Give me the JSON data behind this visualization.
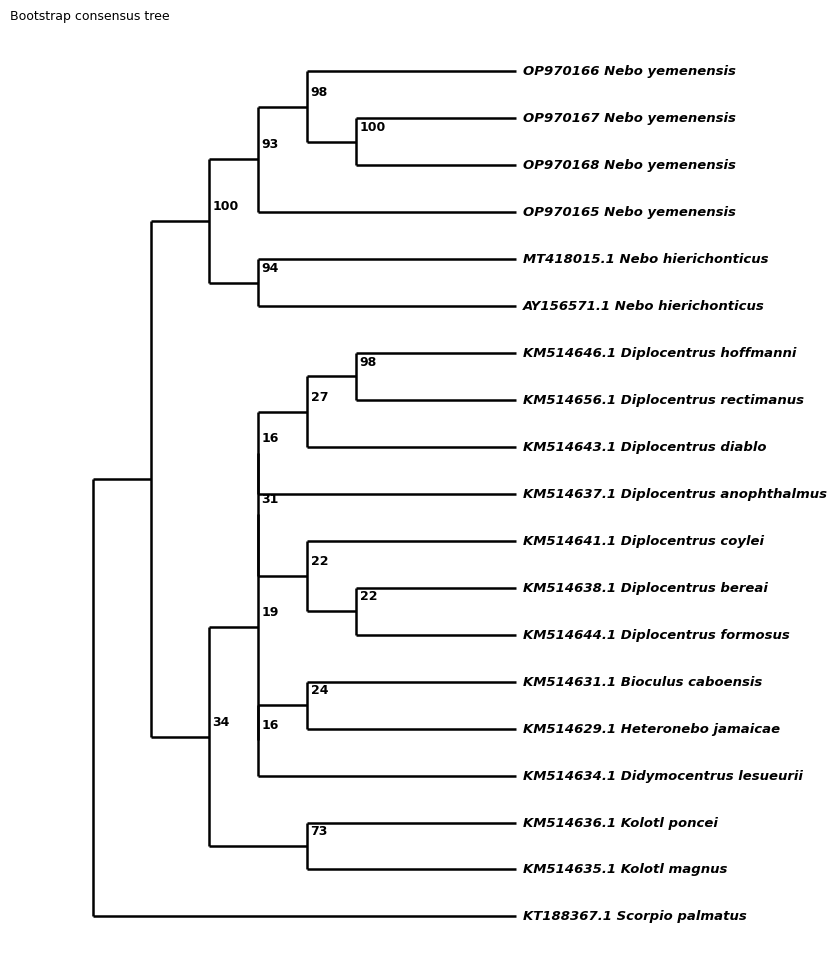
{
  "title": "Bootstrap consensus tree",
  "taxa": [
    "OP970166 Nebo yemenensis",
    "OP970167 Nebo yemenensis",
    "OP970168 Nebo yemenensis",
    "OP970165 Nebo yemenensis",
    "MT418015.1 Nebo hierichonticus",
    "AY156571.1 Nebo hierichonticus",
    "KM514646.1 Diplocentrus hoffmanni",
    "KM514656.1 Diplocentrus rectimanus",
    "KM514643.1 Diplocentrus diablo",
    "KM514637.1 Diplocentrus anophthalmus",
    "KM514641.1 Diplocentrus coylei",
    "KM514638.1 Diplocentrus bereai",
    "KM514644.1 Diplocentrus formosus",
    "KM514631.1 Bioculus caboensis",
    "KM514629.1 Heteronebo jamaicae",
    "KM514634.1 Didymocentrus lesueurii",
    "KM514636.1 Kolotl poncei",
    "KM514635.1 Kolotl magnus",
    "KT188367.1 Scorpio palmatus"
  ],
  "bootstrap_labels": {
    "n98nebo": "98",
    "n100sub": "100",
    "n93": "93",
    "n94": "94",
    "n100nebo": "100",
    "n98diplo": "98",
    "n27": "27",
    "n16d": "16",
    "n31": "31",
    "n22b": "22",
    "n22s": "22",
    "n19": "19",
    "n24": "24",
    "n16h": "16",
    "n34": "34",
    "n73": "73"
  },
  "line_color": "#000000",
  "line_width": 1.8,
  "background_color": "#ffffff",
  "title_fontsize": 9,
  "label_fontsize": 9.5,
  "bootstrap_fontsize": 9
}
